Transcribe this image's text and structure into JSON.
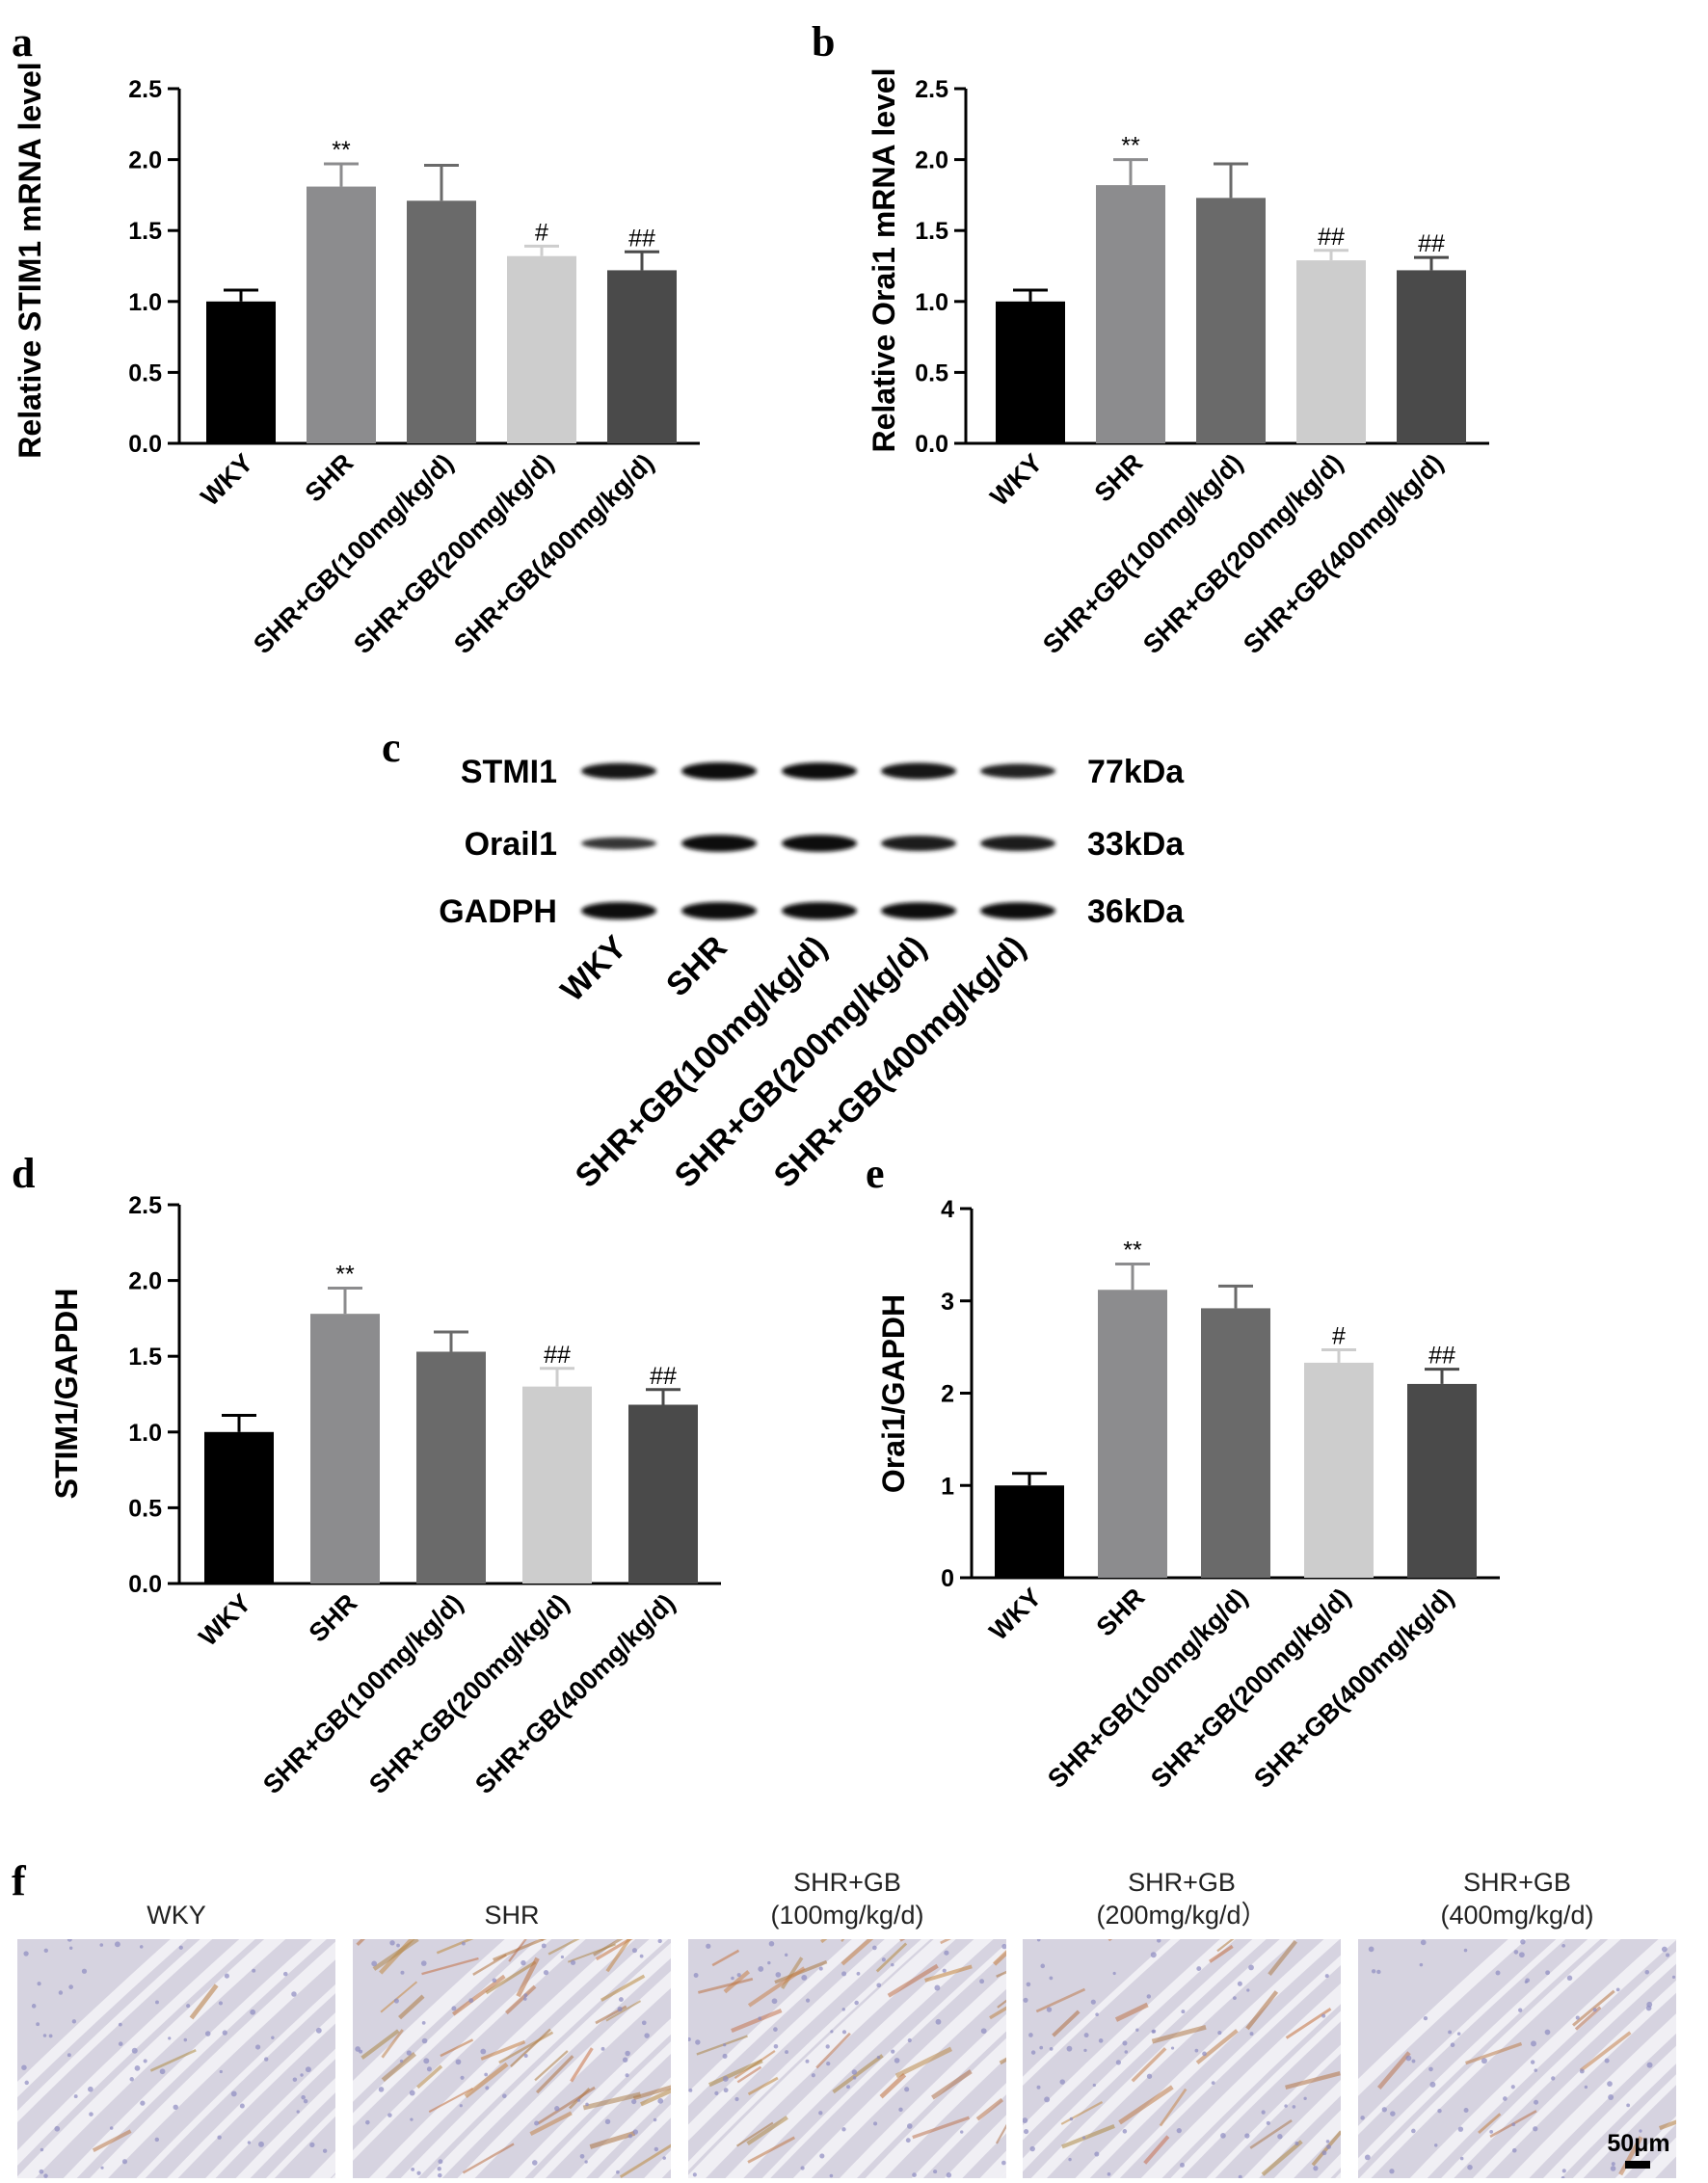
{
  "chart_data": [
    {
      "panel": "a",
      "type": "bar",
      "ylabel": "Relative STIM1 mRNA level",
      "xlabel": "",
      "categories": [
        "WKY",
        "SHR",
        "SHR+GB(100mg/kg/d)",
        "SHR+GB(200mg/kg/d)",
        "SHR+GB(400mg/kg/d)"
      ],
      "values": [
        1.0,
        1.81,
        1.71,
        1.32,
        1.22
      ],
      "errors": [
        0.08,
        0.16,
        0.25,
        0.07,
        0.13
      ],
      "significance": [
        "",
        "**",
        "",
        "#",
        "##"
      ],
      "ylim": [
        0,
        2.5
      ],
      "yticks": [
        "0.0",
        "0.5",
        "1.0",
        "1.5",
        "2.0",
        "2.5"
      ],
      "bar_colors": [
        "#000000",
        "#8c8c8e",
        "#6a6a6a",
        "#cdcdcd",
        "#4a4a4a"
      ],
      "grid": false
    },
    {
      "panel": "b",
      "type": "bar",
      "ylabel": "Relative Orai1 mRNA level",
      "xlabel": "",
      "categories": [
        "WKY",
        "SHR",
        "SHR+GB(100mg/kg/d)",
        "SHR+GB(200mg/kg/d)",
        "SHR+GB(400mg/kg/d)"
      ],
      "values": [
        1.0,
        1.82,
        1.73,
        1.29,
        1.22
      ],
      "errors": [
        0.08,
        0.18,
        0.24,
        0.07,
        0.09
      ],
      "significance": [
        "",
        "**",
        "",
        "##",
        "##"
      ],
      "ylim": [
        0,
        2.5
      ],
      "yticks": [
        "0.0",
        "0.5",
        "1.0",
        "1.5",
        "2.0",
        "2.5"
      ],
      "bar_colors": [
        "#000000",
        "#8c8c8e",
        "#6a6a6a",
        "#cdcdcd",
        "#4a4a4a"
      ],
      "grid": false
    },
    {
      "panel": "d",
      "type": "bar",
      "ylabel": "STIM1/GAPDH",
      "xlabel": "",
      "categories": [
        "WKY",
        "SHR",
        "SHR+GB(100mg/kg/d)",
        "SHR+GB(200mg/kg/d)",
        "SHR+GB(400mg/kg/d)"
      ],
      "values": [
        1.0,
        1.78,
        1.53,
        1.3,
        1.18
      ],
      "errors": [
        0.11,
        0.17,
        0.13,
        0.12,
        0.1
      ],
      "significance": [
        "",
        "**",
        "",
        "##",
        "##"
      ],
      "ylim": [
        0,
        2.5
      ],
      "yticks": [
        "0.0",
        "0.5",
        "1.0",
        "1.5",
        "2.0",
        "2.5"
      ],
      "bar_colors": [
        "#000000",
        "#8c8c8e",
        "#6a6a6a",
        "#cdcdcd",
        "#4a4a4a"
      ],
      "grid": false
    },
    {
      "panel": "e",
      "type": "bar",
      "ylabel": "Orai1/GAPDH",
      "xlabel": "",
      "categories": [
        "WKY",
        "SHR",
        "SHR+GB(100mg/kg/d)",
        "SHR+GB(200mg/kg/d)",
        "SHR+GB(400mg/kg/d)"
      ],
      "values": [
        1.0,
        3.12,
        2.92,
        2.33,
        2.1
      ],
      "errors": [
        0.13,
        0.28,
        0.24,
        0.14,
        0.16
      ],
      "significance": [
        "",
        "**",
        "",
        "#",
        "##"
      ],
      "ylim": [
        0,
        4
      ],
      "yticks": [
        "0",
        "1",
        "2",
        "3",
        "4"
      ],
      "bar_colors": [
        "#000000",
        "#8c8c8e",
        "#6a6a6a",
        "#cdcdcd",
        "#4a4a4a"
      ],
      "grid": false
    }
  ],
  "western_blot": {
    "panel": "c",
    "proteins": [
      {
        "name": "STMI1",
        "size": "77kDa",
        "intensity": [
          0.85,
          1.0,
          0.95,
          0.9,
          0.7
        ]
      },
      {
        "name": "Orail1",
        "size": "33kDa",
        "intensity": [
          0.45,
          0.95,
          0.95,
          0.8,
          0.8
        ]
      },
      {
        "name": "GADPH",
        "size": "36kDa",
        "intensity": [
          1.0,
          1.0,
          1.0,
          0.95,
          0.95
        ]
      }
    ],
    "lanes": [
      "WKY",
      "SHR",
      "SHR+GB(100mg/kg/d)",
      "SHR+GB(200mg/kg/d)",
      "SHR+GB(400mg/kg/d)"
    ]
  },
  "ihc": {
    "panel": "f",
    "images": [
      {
        "title_line1": "WKY",
        "title_line2": "",
        "stain": 0.05
      },
      {
        "title_line1": "SHR",
        "title_line2": "",
        "stain": 0.75
      },
      {
        "title_line1": "SHR+GB",
        "title_line2": "(100mg/kg/d)",
        "stain": 0.6
      },
      {
        "title_line1": "SHR+GB",
        "title_line2": "(200mg/kg/d）",
        "stain": 0.35
      },
      {
        "title_line1": "SHR+GB",
        "title_line2": "(400mg/kg/d)",
        "stain": 0.15
      }
    ],
    "scale_bar": "50μm"
  }
}
